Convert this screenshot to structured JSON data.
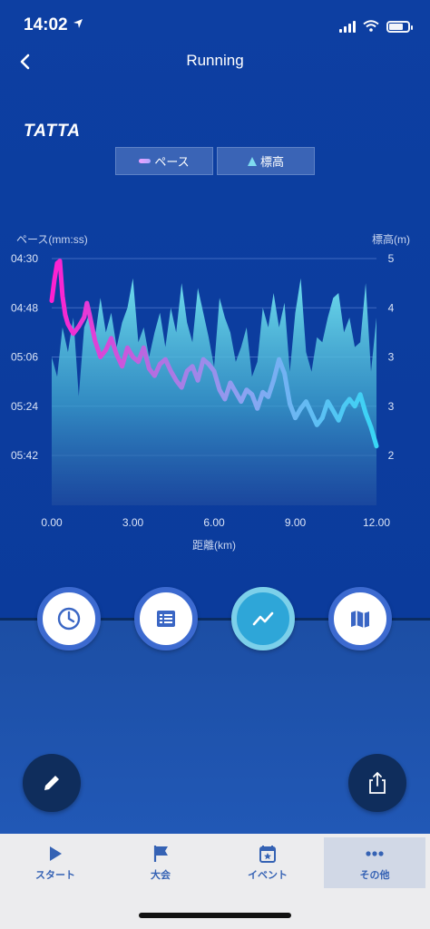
{
  "status_bar": {
    "time": "14:02"
  },
  "nav": {
    "title": "Running"
  },
  "brand": {
    "logo": "TATTA"
  },
  "legend": {
    "pace_label": "ペース",
    "elevation_label": "標高"
  },
  "chart_data": {
    "type": "area",
    "left_axis_title": "ペース(mm:ss)",
    "right_axis_title": "標高(m)",
    "xlabel": "距離(km)",
    "x_ticks": [
      "0.00",
      "3.00",
      "6.00",
      "9.00",
      "12.00"
    ],
    "x_range": [
      0,
      12
    ],
    "pace_ticks": [
      "04:30",
      "04:48",
      "05:06",
      "05:24",
      "05:42"
    ],
    "pace_range_sec": [
      270,
      354
    ],
    "elevation_ticks": [
      "5",
      "4",
      "3",
      "3",
      "2"
    ],
    "elevation_range_m": [
      1.0,
      5.0
    ],
    "grid": true,
    "series": [
      {
        "name": "ペース",
        "x": [
          0.0,
          0.1,
          0.2,
          0.3,
          0.4,
          0.5,
          0.6,
          0.8,
          1.0,
          1.2,
          1.3,
          1.4,
          1.6,
          1.8,
          2.0,
          2.2,
          2.4,
          2.6,
          2.8,
          3.0,
          3.2,
          3.4,
          3.6,
          3.8,
          4.0,
          4.2,
          4.4,
          4.6,
          4.8,
          5.0,
          5.2,
          5.4,
          5.6,
          5.8,
          6.0,
          6.2,
          6.4,
          6.6,
          6.8,
          7.0,
          7.2,
          7.4,
          7.6,
          7.8,
          8.0,
          8.2,
          8.4,
          8.6,
          8.8,
          9.0,
          9.2,
          9.4,
          9.6,
          9.8,
          10.0,
          10.2,
          10.4,
          10.6,
          10.8,
          11.0,
          11.2,
          11.4,
          11.6,
          11.8,
          12.0
        ],
        "values": [
          288,
          279,
          272,
          271,
          286,
          294,
          298,
          302,
          299,
          295,
          289,
          294,
          305,
          312,
          309,
          304,
          311,
          316,
          308,
          312,
          314,
          308,
          317,
          320,
          315,
          313,
          318,
          322,
          325,
          318,
          316,
          322,
          313,
          315,
          318,
          326,
          330,
          323,
          327,
          331,
          326,
          328,
          334,
          327,
          329,
          322,
          313,
          319,
          332,
          338,
          334,
          331,
          336,
          341,
          338,
          331,
          335,
          339,
          333,
          330,
          333,
          328,
          336,
          342,
          350
        ]
      },
      {
        "name": "標高",
        "x": [
          0.0,
          0.2,
          0.4,
          0.6,
          0.8,
          1.0,
          1.2,
          1.4,
          1.6,
          1.8,
          2.0,
          2.2,
          2.4,
          2.6,
          2.8,
          3.0,
          3.2,
          3.4,
          3.6,
          3.8,
          4.0,
          4.2,
          4.4,
          4.6,
          4.8,
          5.0,
          5.2,
          5.4,
          5.6,
          5.8,
          6.0,
          6.2,
          6.4,
          6.6,
          6.8,
          7.0,
          7.2,
          7.4,
          7.6,
          7.8,
          8.0,
          8.2,
          8.4,
          8.6,
          8.8,
          9.0,
          9.2,
          9.4,
          9.6,
          9.8,
          10.0,
          10.2,
          10.4,
          10.6,
          10.8,
          11.0,
          11.2,
          11.4,
          11.6,
          11.8,
          12.0
        ],
        "values": [
          3.0,
          2.6,
          3.6,
          3.1,
          3.8,
          2.2,
          3.6,
          3.9,
          3.4,
          4.2,
          3.5,
          3.9,
          3.2,
          3.7,
          4.0,
          4.6,
          3.3,
          3.6,
          3.0,
          3.5,
          3.9,
          3.2,
          4.0,
          3.5,
          4.5,
          3.7,
          3.3,
          4.4,
          3.9,
          3.4,
          2.8,
          4.2,
          3.8,
          3.5,
          2.9,
          3.2,
          3.6,
          2.6,
          2.9,
          4.0,
          3.6,
          4.3,
          3.6,
          4.1,
          2.7,
          3.9,
          4.6,
          3.1,
          2.7,
          3.4,
          3.3,
          3.8,
          4.2,
          4.3,
          3.5,
          3.8,
          3.2,
          3.3,
          4.5,
          2.7,
          3.8
        ]
      }
    ]
  },
  "actions": {
    "history": "clock-icon",
    "list": "list-icon",
    "chart": "chart-line-icon",
    "map": "map-icon",
    "edit": "pencil-icon",
    "share": "share-icon"
  },
  "tab_bar": {
    "items": [
      {
        "label": "スタート",
        "icon": "play-icon"
      },
      {
        "label": "大会",
        "icon": "flag-icon"
      },
      {
        "label": "イベント",
        "icon": "calendar-star-icon"
      },
      {
        "label": "その他",
        "icon": "more-icon"
      }
    ]
  },
  "colors": {
    "background": "#0d3fa2",
    "accent": "#3c6ad0",
    "active_tab": "#d1d8e6",
    "pace_start": "#ff1fd0",
    "pace_end": "#38d6f5"
  }
}
